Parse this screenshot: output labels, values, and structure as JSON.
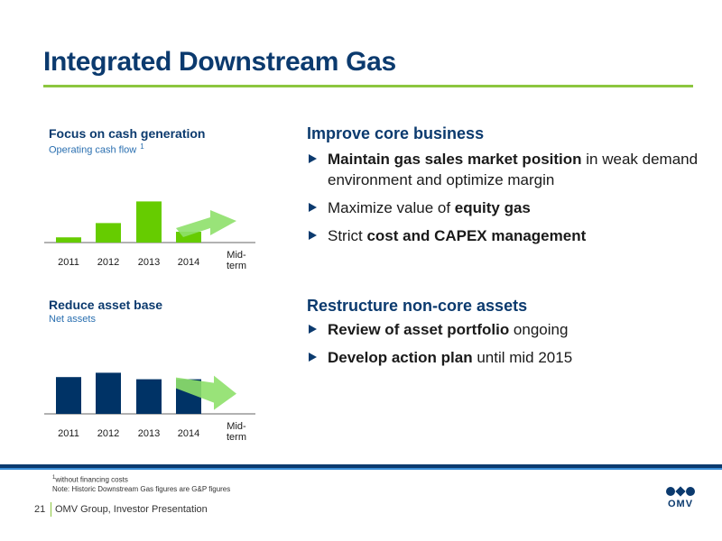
{
  "slide": {
    "title": "Integrated Downstream Gas",
    "colors": {
      "navy": "#0b3a6e",
      "green": "#8cc63f",
      "bar_green": "#66cc00",
      "arrow_green": "#8ee06a"
    }
  },
  "left": {
    "chart1": {
      "title": "Focus on cash generation",
      "subtitle": "Operating cash flow",
      "subtitle_sup": "1"
    },
    "chart2": {
      "title": "Reduce asset base",
      "subtitle": "Net assets"
    }
  },
  "chart_data": [
    {
      "type": "bar",
      "title": "Focus on cash generation",
      "subtitle": "Operating cash flow",
      "categories": [
        "2011",
        "2012",
        "2013",
        "2014",
        "Mid-term"
      ],
      "values": [
        0.12,
        0.45,
        0.95,
        0.25,
        null
      ],
      "value_scale": "relative (no axis printed)",
      "trend_arrow": "up from 2014 to Mid-term",
      "bar_color": "#66cc00"
    },
    {
      "type": "bar",
      "title": "Reduce asset base",
      "subtitle": "Net assets",
      "categories": [
        "2011",
        "2012",
        "2013",
        "2014",
        "Mid-term"
      ],
      "values": [
        0.85,
        0.95,
        0.8,
        0.8,
        null
      ],
      "value_scale": "relative (no axis printed)",
      "trend_arrow": "down from 2014 to Mid-term",
      "bar_color": "#003366"
    }
  ],
  "right": {
    "section1": {
      "heading": "Improve core business",
      "bullets": [
        {
          "bold": "Maintain gas sales market position",
          "rest": " in weak demand environment and optimize margin",
          "pre": ""
        },
        {
          "pre": "Maximize value of ",
          "bold": "equity gas",
          "rest": ""
        },
        {
          "pre": "Strict ",
          "bold": "cost and CAPEX management",
          "rest": ""
        }
      ]
    },
    "section2": {
      "heading": "Restructure non-core assets",
      "bullets": [
        {
          "pre": "",
          "bold": "Review of asset portfolio",
          "rest": " ongoing"
        },
        {
          "pre": "",
          "bold": "Develop action plan",
          "rest": " until mid 2015"
        }
      ]
    }
  },
  "footer": {
    "footnote_sup": "1",
    "footnote1": "without financing costs",
    "footnote2": "Note: Historic Downstream Gas figures are G&P figures",
    "page_number": "21",
    "presentation": "OMV Group, Investor Presentation",
    "logo_text": "OMV"
  }
}
